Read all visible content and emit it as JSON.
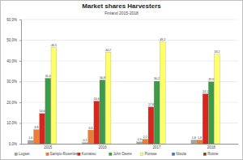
{
  "chart_data": {
    "type": "bar",
    "title": "Market shares Harvesters",
    "subtitle": "Finland 2015-2018",
    "categories": [
      "2015",
      "2016",
      "2017",
      "2018"
    ],
    "series": [
      {
        "name": "Logset",
        "color": "#a5a5a5",
        "values": [
          1.6,
          0.5,
          0.9,
          1.8
        ]
      },
      {
        "name": "Sampo-Rosenlew",
        "color": "#ed7d31",
        "values": [
          6.8,
          6.6,
          2.2,
          1.8
        ]
      },
      {
        "name": "Komatsu",
        "color": "#d9261c",
        "values": [
          14.6,
          20.6,
          17.8,
          24.1
        ]
      },
      {
        "name": "John Deere",
        "color": "#3c9a48",
        "values": [
          31.6,
          30.8,
          30.2,
          29.9
        ]
      },
      {
        "name": "Ponsse",
        "color": "#ffff66",
        "values": [
          46.5,
          44.2,
          49.2,
          43.2
        ]
      },
      {
        "name": "Nisula",
        "color": "#4472c4",
        "values": [
          null,
          null,
          null,
          null
        ]
      },
      {
        "name": "Rottne",
        "color": "#843c0c",
        "values": [
          null,
          null,
          null,
          null
        ]
      }
    ],
    "ylim": [
      0,
      60
    ],
    "yticks": [
      {
        "value": 0,
        "label": "0,0%"
      },
      {
        "value": 10,
        "label": "10,0%"
      },
      {
        "value": 20,
        "label": "20,0%"
      },
      {
        "value": 30,
        "label": "30,0%"
      },
      {
        "value": 40,
        "label": "40,0%"
      },
      {
        "value": 50,
        "label": "50,0%"
      },
      {
        "value": 60,
        "label": "60,0%"
      }
    ],
    "grid": true,
    "data_labels": true,
    "legend": "bottom"
  }
}
